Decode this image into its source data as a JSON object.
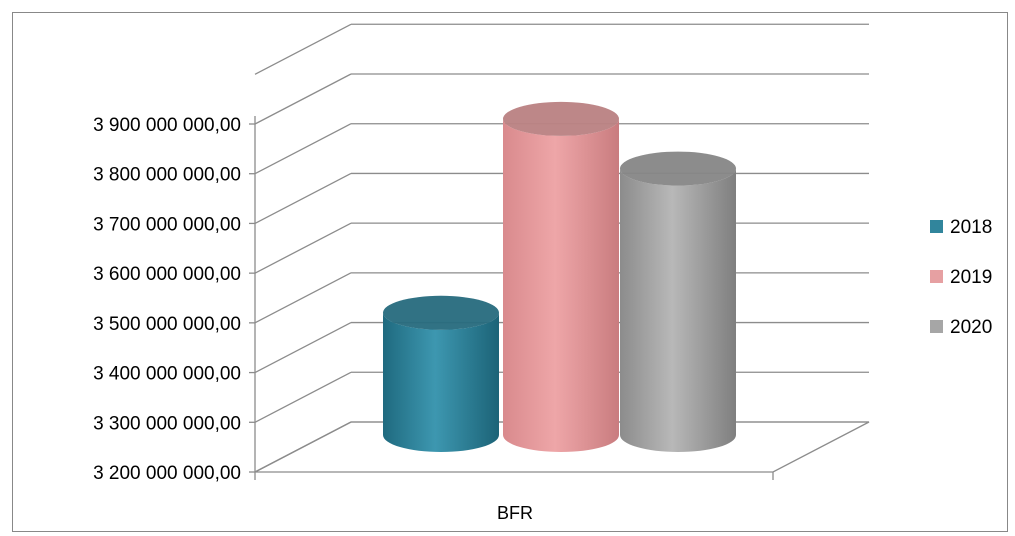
{
  "chart_data": {
    "type": "bar",
    "style": "3d-cylinder",
    "categories": [
      "BFR"
    ],
    "series": [
      {
        "name": "2018",
        "values": [
          3470000000
        ],
        "color": "#31859c"
      },
      {
        "name": "2019",
        "values": [
          3860000000
        ],
        "color": "#e6a0a2"
      },
      {
        "name": "2020",
        "values": [
          3760000000
        ],
        "color": "#a6a6a6"
      }
    ],
    "yticks": [
      "3 200 000 000,00",
      "3 300 000 000,00",
      "3 400 000 000,00",
      "3 500 000 000,00",
      "3 600 000 000,00",
      "3 700 000 000,00",
      "3 800 000 000,00",
      "3 900 000 000,00"
    ],
    "ylim": [
      3200000000,
      3900000000
    ],
    "grid": true,
    "legend_position": "right"
  }
}
